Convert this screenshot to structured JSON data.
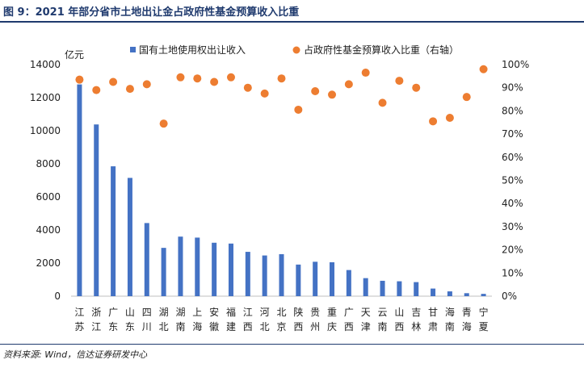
{
  "title": "图 9：2021 年部分省市土地出让金占政府性基金预算收入比重",
  "source": "资料来源: Wind，信达证券研发中心",
  "colors": {
    "bar": "#4472c4",
    "dot": "#ed7d31",
    "title": "#1f3a6e"
  },
  "chart_data": {
    "type": "bar",
    "categories": [
      "江苏",
      "浙江",
      "广东",
      "山东",
      "四川",
      "湖北",
      "湖南",
      "上海",
      "安徽",
      "福建",
      "江西",
      "河北",
      "北京",
      "陕西",
      "贵州",
      "重庆",
      "广西",
      "天津",
      "云南",
      "山西",
      "吉林",
      "甘肃",
      "海南",
      "青海",
      "宁夏"
    ],
    "category_lines": [
      [
        "江",
        "苏"
      ],
      [
        "浙",
        "江"
      ],
      [
        "广",
        "东"
      ],
      [
        "山",
        "东"
      ],
      [
        "四",
        "川"
      ],
      [
        "湖",
        "北"
      ],
      [
        "湖",
        "南"
      ],
      [
        "上",
        "海"
      ],
      [
        "安",
        "徽"
      ],
      [
        "福",
        "建"
      ],
      [
        "江",
        "西"
      ],
      [
        "河",
        "北"
      ],
      [
        "北",
        "京"
      ],
      [
        "陕",
        "西"
      ],
      [
        "贵",
        "州"
      ],
      [
        "重",
        "庆"
      ],
      [
        "广",
        "西"
      ],
      [
        "天",
        "津"
      ],
      [
        "云",
        "南"
      ],
      [
        "山",
        "西"
      ],
      [
        "吉",
        "林"
      ],
      [
        "甘",
        "肃"
      ],
      [
        "海",
        "南"
      ],
      [
        "青",
        "海"
      ],
      [
        "宁",
        "夏"
      ]
    ],
    "y_unit": "亿元",
    "ylim": [
      0,
      14000
    ],
    "yticks": [
      "0",
      "2000",
      "4000",
      "6000",
      "8000",
      "10000",
      "12000",
      "14000"
    ],
    "y2lim": [
      0,
      100
    ],
    "y2ticks": [
      "0%",
      "10%",
      "20%",
      "30%",
      "40%",
      "50%",
      "60%",
      "70%",
      "80%",
      "90%",
      "100%"
    ],
    "legend_position": "top",
    "series": [
      {
        "name": "国有土地使用权出让收入",
        "type": "bar",
        "axis": "left",
        "values": [
          12800,
          10380,
          7850,
          7150,
          4420,
          2920,
          3600,
          3540,
          3230,
          3180,
          2680,
          2460,
          2540,
          1910,
          2080,
          2050,
          1580,
          1090,
          930,
          900,
          850,
          460,
          290,
          180,
          140
        ]
      },
      {
        "name": "占政府性基金预算收入比重（右轴）",
        "type": "scatter",
        "axis": "right",
        "values": [
          93.5,
          89,
          92.5,
          89.5,
          91.5,
          74.5,
          94.5,
          94,
          92.5,
          94.5,
          90,
          87.5,
          94,
          80.5,
          88.5,
          87,
          91.5,
          96.5,
          83.5,
          93,
          90,
          75.5,
          77,
          86,
          98
        ]
      }
    ]
  }
}
